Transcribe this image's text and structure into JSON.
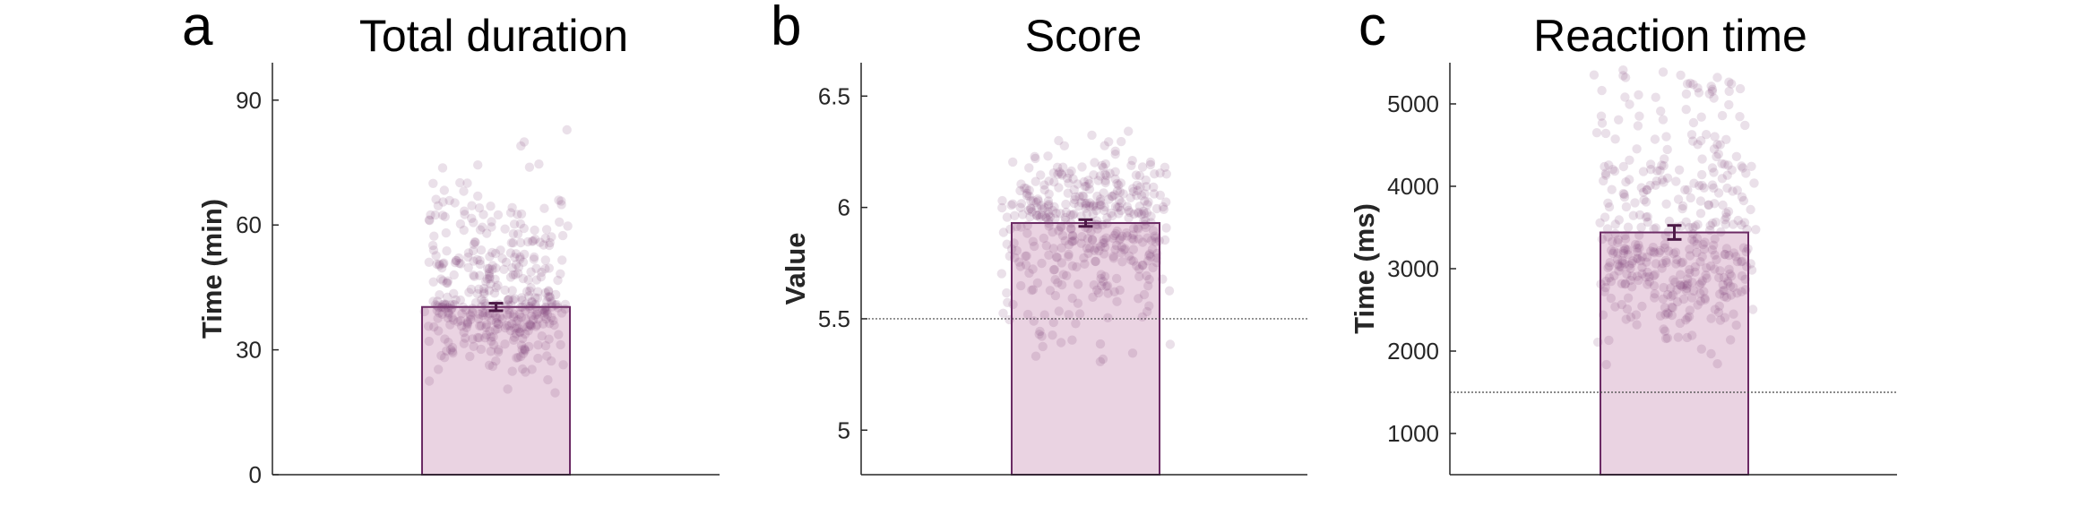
{
  "colors": {
    "bar_fill": "#ead3e2",
    "bar_edge": "#6b2a64",
    "dot": "#7a3f74",
    "error_bar": "#4d1a47",
    "axis": "#262626",
    "reference_line": "#444444"
  },
  "chart_data": [
    {
      "panel_letter": "a",
      "type": "bar",
      "title": "Total duration",
      "xlabel": "",
      "ylabel": "Time (min)",
      "ylim": [
        0,
        99
      ],
      "yticks": [
        0,
        30,
        60,
        90
      ],
      "ytick_labels": [
        "0",
        "30",
        "60",
        "90"
      ],
      "mean": 40.3,
      "sem": 0.9,
      "reference_line": null,
      "points": {
        "n": 420,
        "center": 41,
        "spread": 9.5,
        "skew": 0.45,
        "min": 17,
        "max": 95,
        "jitter": 0.75
      },
      "grid": false,
      "legend": "none"
    },
    {
      "panel_letter": "b",
      "type": "bar",
      "title": "Score",
      "xlabel": "",
      "ylabel": "Value",
      "ylim": [
        4.8,
        6.65
      ],
      "yticks": [
        5,
        5.5,
        6,
        6.5
      ],
      "ytick_labels": [
        "5",
        "5.5",
        "6",
        "6.5"
      ],
      "mean": 5.93,
      "sem": 0.015,
      "reference_line": 5.5,
      "points": {
        "n": 420,
        "center": 5.96,
        "spread": 0.22,
        "skew": -0.35,
        "min": 4.98,
        "max": 6.36,
        "jitter": 0.9
      },
      "grid": false,
      "legend": "none"
    },
    {
      "panel_letter": "c",
      "type": "bar",
      "title": "Reaction time",
      "xlabel": "",
      "ylabel": "Time (ms)",
      "ylim": [
        500,
        5500
      ],
      "yticks": [
        1000,
        2000,
        3000,
        4000,
        5000
      ],
      "ytick_labels": [
        "1000",
        "2000",
        "3000",
        "4000",
        "5000"
      ],
      "mean": 3440,
      "sem": 85,
      "reference_line": 1500,
      "points": {
        "n": 420,
        "center": 3250,
        "spread": 750,
        "skew": 0.5,
        "min": 850,
        "max": 5450,
        "jitter": 0.85
      },
      "grid": false,
      "legend": "none"
    }
  ]
}
